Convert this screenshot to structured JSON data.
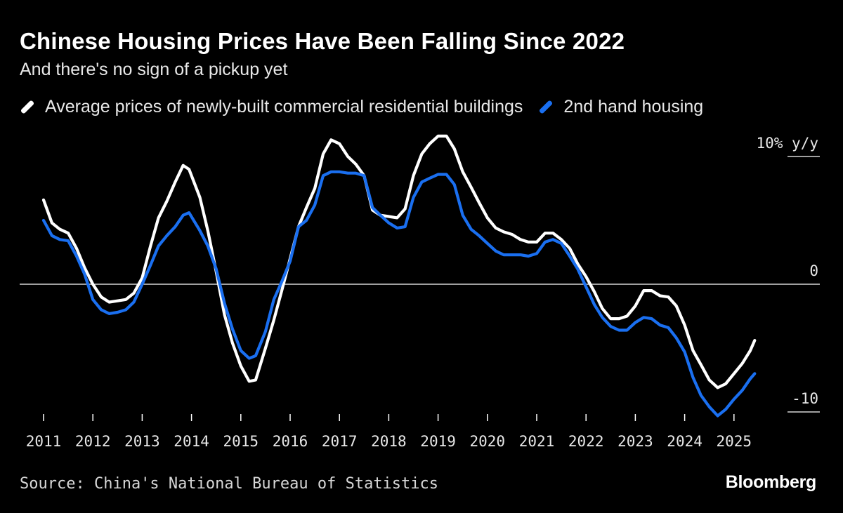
{
  "header": {
    "title": "Chinese Housing Prices Have Been Falling Since 2022",
    "subtitle": "And there's no sign of a pickup yet"
  },
  "footer": {
    "source": "Source: China's National Bureau of Statistics",
    "brand": "Bloomberg"
  },
  "colors": {
    "background": "#000000",
    "series_new": "#ffffff",
    "series_second": "#1a6ff0",
    "zero_line": "#ffffff"
  },
  "chart_data": {
    "type": "line",
    "title": "Chinese Housing Prices Have Been Falling Since 2022",
    "subtitle": "And there's no sign of a pickup yet",
    "ylabel": "10% y/y",
    "xlabel": "",
    "ylim": [
      -10,
      10
    ],
    "xlim": [
      2011,
      2025.7
    ],
    "y_ticks": [
      {
        "value": 10,
        "label": "10% y/y"
      },
      {
        "value": 0,
        "label": "0"
      },
      {
        "value": -10,
        "label": "-10"
      }
    ],
    "x_ticks": [
      "2011",
      "2012",
      "2013",
      "2014",
      "2015",
      "2016",
      "2017",
      "2018",
      "2019",
      "2020",
      "2021",
      "2022",
      "2023",
      "2024",
      "2025"
    ],
    "legend_position": "top",
    "series": [
      {
        "name": "Average prices of newly-built commercial residential buildings",
        "color": "#ffffff",
        "points": [
          [
            2011.0,
            6.6
          ],
          [
            2011.17,
            4.8
          ],
          [
            2011.33,
            4.3
          ],
          [
            2011.5,
            4.0
          ],
          [
            2011.67,
            2.8
          ],
          [
            2011.83,
            1.3
          ],
          [
            2012.0,
            0.0
          ],
          [
            2012.17,
            -1.0
          ],
          [
            2012.33,
            -1.4
          ],
          [
            2012.5,
            -1.3
          ],
          [
            2012.67,
            -1.2
          ],
          [
            2012.83,
            -0.7
          ],
          [
            2013.0,
            0.5
          ],
          [
            2013.17,
            3.0
          ],
          [
            2013.33,
            5.2
          ],
          [
            2013.5,
            6.5
          ],
          [
            2013.67,
            8.0
          ],
          [
            2013.83,
            9.3
          ],
          [
            2013.95,
            9.0
          ],
          [
            2014.17,
            6.8
          ],
          [
            2014.33,
            4.2
          ],
          [
            2014.5,
            1.0
          ],
          [
            2014.67,
            -2.4
          ],
          [
            2014.83,
            -4.6
          ],
          [
            2015.0,
            -6.4
          ],
          [
            2015.17,
            -7.6
          ],
          [
            2015.3,
            -7.5
          ],
          [
            2015.5,
            -5.0
          ],
          [
            2015.67,
            -2.8
          ],
          [
            2015.83,
            -0.5
          ],
          [
            2016.0,
            2.0
          ],
          [
            2016.17,
            4.5
          ],
          [
            2016.33,
            6.0
          ],
          [
            2016.5,
            7.5
          ],
          [
            2016.67,
            10.2
          ],
          [
            2016.83,
            11.3
          ],
          [
            2017.0,
            11.0
          ],
          [
            2017.17,
            10.0
          ],
          [
            2017.33,
            9.4
          ],
          [
            2017.5,
            8.5
          ],
          [
            2017.67,
            5.8
          ],
          [
            2017.83,
            5.4
          ],
          [
            2018.0,
            5.3
          ],
          [
            2018.17,
            5.2
          ],
          [
            2018.33,
            5.9
          ],
          [
            2018.5,
            8.5
          ],
          [
            2018.67,
            10.2
          ],
          [
            2018.83,
            11.0
          ],
          [
            2019.0,
            11.6
          ],
          [
            2019.17,
            11.6
          ],
          [
            2019.33,
            10.6
          ],
          [
            2019.5,
            8.8
          ],
          [
            2019.67,
            7.6
          ],
          [
            2019.83,
            6.4
          ],
          [
            2020.0,
            5.2
          ],
          [
            2020.17,
            4.4
          ],
          [
            2020.33,
            4.1
          ],
          [
            2020.5,
            3.9
          ],
          [
            2020.67,
            3.5
          ],
          [
            2020.83,
            3.3
          ],
          [
            2021.0,
            3.3
          ],
          [
            2021.17,
            4.0
          ],
          [
            2021.33,
            4.0
          ],
          [
            2021.5,
            3.5
          ],
          [
            2021.67,
            2.8
          ],
          [
            2021.83,
            1.6
          ],
          [
            2022.0,
            0.6
          ],
          [
            2022.17,
            -0.6
          ],
          [
            2022.33,
            -1.9
          ],
          [
            2022.5,
            -2.7
          ],
          [
            2022.67,
            -2.7
          ],
          [
            2022.83,
            -2.5
          ],
          [
            2023.0,
            -1.7
          ],
          [
            2023.17,
            -0.5
          ],
          [
            2023.33,
            -0.5
          ],
          [
            2023.5,
            -0.9
          ],
          [
            2023.67,
            -1.0
          ],
          [
            2023.83,
            -1.7
          ],
          [
            2024.0,
            -3.2
          ],
          [
            2024.17,
            -5.2
          ],
          [
            2024.33,
            -6.3
          ],
          [
            2024.5,
            -7.5
          ],
          [
            2024.67,
            -8.1
          ],
          [
            2024.83,
            -7.8
          ],
          [
            2025.0,
            -7.0
          ],
          [
            2025.17,
            -6.2
          ],
          [
            2025.33,
            -5.2
          ],
          [
            2025.42,
            -4.4
          ]
        ]
      },
      {
        "name": "2nd hand housing",
        "color": "#1a6ff0",
        "points": [
          [
            2011.0,
            5.0
          ],
          [
            2011.17,
            3.8
          ],
          [
            2011.33,
            3.5
          ],
          [
            2011.5,
            3.4
          ],
          [
            2011.67,
            2.2
          ],
          [
            2011.83,
            0.8
          ],
          [
            2012.0,
            -1.2
          ],
          [
            2012.17,
            -2.0
          ],
          [
            2012.33,
            -2.3
          ],
          [
            2012.5,
            -2.2
          ],
          [
            2012.67,
            -2.0
          ],
          [
            2012.83,
            -1.4
          ],
          [
            2013.0,
            0.0
          ],
          [
            2013.17,
            1.5
          ],
          [
            2013.33,
            3.0
          ],
          [
            2013.5,
            3.8
          ],
          [
            2013.67,
            4.5
          ],
          [
            2013.83,
            5.4
          ],
          [
            2013.95,
            5.6
          ],
          [
            2014.17,
            4.2
          ],
          [
            2014.33,
            3.0
          ],
          [
            2014.5,
            1.2
          ],
          [
            2014.67,
            -1.5
          ],
          [
            2014.83,
            -3.5
          ],
          [
            2015.0,
            -5.2
          ],
          [
            2015.17,
            -5.8
          ],
          [
            2015.3,
            -5.6
          ],
          [
            2015.5,
            -3.7
          ],
          [
            2015.67,
            -1.2
          ],
          [
            2015.83,
            0.2
          ],
          [
            2016.0,
            1.8
          ],
          [
            2016.17,
            4.5
          ],
          [
            2016.33,
            5.0
          ],
          [
            2016.5,
            6.2
          ],
          [
            2016.67,
            8.5
          ],
          [
            2016.83,
            8.8
          ],
          [
            2017.0,
            8.8
          ],
          [
            2017.17,
            8.7
          ],
          [
            2017.33,
            8.7
          ],
          [
            2017.5,
            8.5
          ],
          [
            2017.67,
            6.0
          ],
          [
            2017.83,
            5.4
          ],
          [
            2018.0,
            4.8
          ],
          [
            2018.17,
            4.4
          ],
          [
            2018.33,
            4.5
          ],
          [
            2018.5,
            6.8
          ],
          [
            2018.67,
            8.0
          ],
          [
            2018.83,
            8.3
          ],
          [
            2019.0,
            8.6
          ],
          [
            2019.17,
            8.6
          ],
          [
            2019.33,
            7.8
          ],
          [
            2019.5,
            5.4
          ],
          [
            2019.67,
            4.3
          ],
          [
            2019.83,
            3.8
          ],
          [
            2020.0,
            3.2
          ],
          [
            2020.17,
            2.6
          ],
          [
            2020.33,
            2.3
          ],
          [
            2020.5,
            2.3
          ],
          [
            2020.67,
            2.3
          ],
          [
            2020.83,
            2.2
          ],
          [
            2021.0,
            2.4
          ],
          [
            2021.17,
            3.3
          ],
          [
            2021.33,
            3.5
          ],
          [
            2021.5,
            3.2
          ],
          [
            2021.67,
            2.2
          ],
          [
            2021.83,
            1.2
          ],
          [
            2022.0,
            -0.2
          ],
          [
            2022.17,
            -1.6
          ],
          [
            2022.33,
            -2.6
          ],
          [
            2022.5,
            -3.3
          ],
          [
            2022.67,
            -3.6
          ],
          [
            2022.83,
            -3.6
          ],
          [
            2023.0,
            -3.0
          ],
          [
            2023.17,
            -2.6
          ],
          [
            2023.33,
            -2.7
          ],
          [
            2023.5,
            -3.2
          ],
          [
            2023.67,
            -3.4
          ],
          [
            2023.83,
            -4.2
          ],
          [
            2024.0,
            -5.3
          ],
          [
            2024.17,
            -7.3
          ],
          [
            2024.33,
            -8.7
          ],
          [
            2024.5,
            -9.6
          ],
          [
            2024.67,
            -10.3
          ],
          [
            2024.83,
            -9.8
          ],
          [
            2025.0,
            -9.0
          ],
          [
            2025.17,
            -8.3
          ],
          [
            2025.33,
            -7.4
          ],
          [
            2025.42,
            -7.0
          ]
        ]
      }
    ]
  }
}
